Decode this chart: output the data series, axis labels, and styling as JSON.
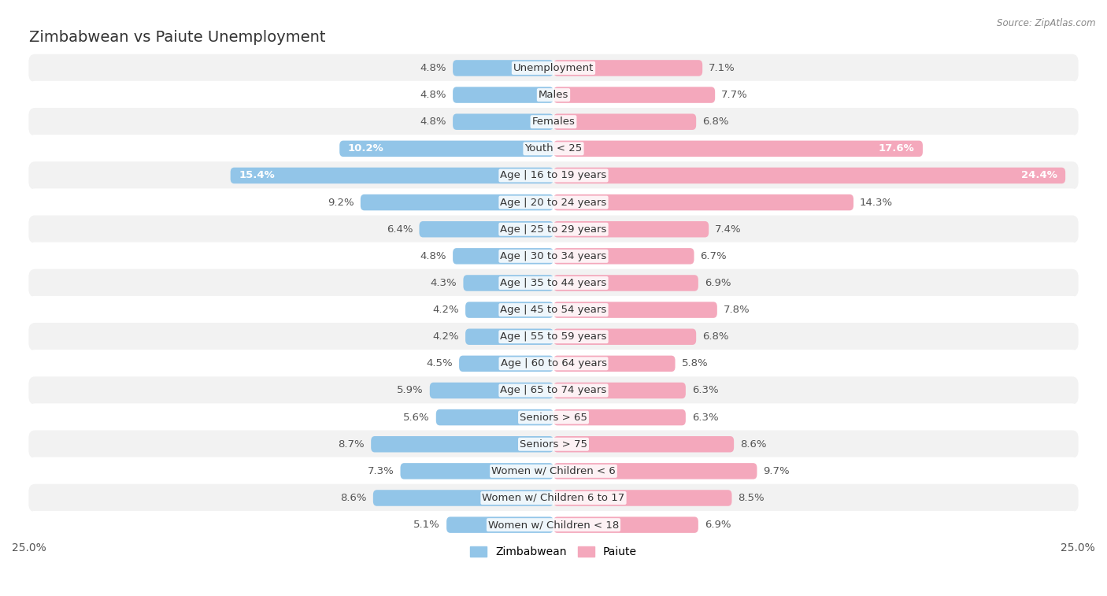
{
  "title": "Zimbabwean vs Paiute Unemployment",
  "source": "Source: ZipAtlas.com",
  "categories": [
    "Unemployment",
    "Males",
    "Females",
    "Youth < 25",
    "Age | 16 to 19 years",
    "Age | 20 to 24 years",
    "Age | 25 to 29 years",
    "Age | 30 to 34 years",
    "Age | 35 to 44 years",
    "Age | 45 to 54 years",
    "Age | 55 to 59 years",
    "Age | 60 to 64 years",
    "Age | 65 to 74 years",
    "Seniors > 65",
    "Seniors > 75",
    "Women w/ Children < 6",
    "Women w/ Children 6 to 17",
    "Women w/ Children < 18"
  ],
  "zimbabwean": [
    4.8,
    4.8,
    4.8,
    10.2,
    15.4,
    9.2,
    6.4,
    4.8,
    4.3,
    4.2,
    4.2,
    4.5,
    5.9,
    5.6,
    8.7,
    7.3,
    8.6,
    5.1
  ],
  "paiute": [
    7.1,
    7.7,
    6.8,
    17.6,
    24.4,
    14.3,
    7.4,
    6.7,
    6.9,
    7.8,
    6.8,
    5.8,
    6.3,
    6.3,
    8.6,
    9.7,
    8.5,
    6.9
  ],
  "zimbabwean_color": "#92c5e8",
  "paiute_color": "#f4a8bc",
  "background_color": "#ffffff",
  "row_bg_odd": "#f2f2f2",
  "row_bg_even": "#ffffff",
  "axis_limit": 25.0,
  "label_fontsize": 9.5,
  "value_fontsize": 9.5,
  "title_fontsize": 14,
  "bar_height": 0.6,
  "zim_label_inside_threshold": 10.0,
  "pai_label_inside_threshold": 15.0
}
